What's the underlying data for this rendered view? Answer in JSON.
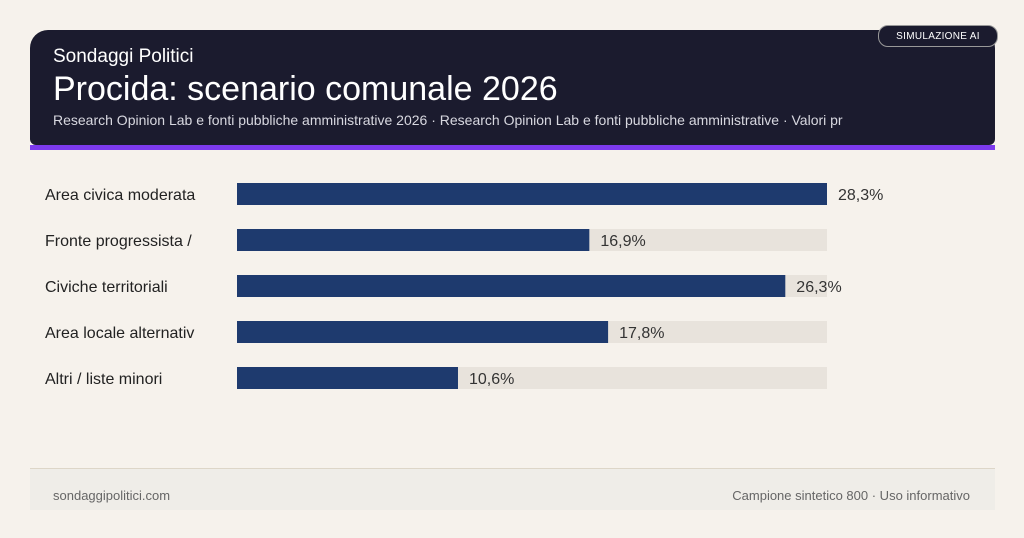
{
  "header": {
    "brand": "Sondaggi Politici",
    "title": "Procida: scenario comunale 2026",
    "subtitle": "Research Opinion Lab e fonti pubbliche amministrative 2026 · Research Opinion Lab e fonti pubbliche amministrative · Valori pr",
    "badge": "SIMULAZIONE AI"
  },
  "chart_data": {
    "type": "bar",
    "orientation": "horizontal",
    "categories": [
      "Area civica moderata",
      "Fronte progressista /",
      "Civiche territoriali",
      "Area locale alternativ",
      "Altri / liste minori"
    ],
    "values": [
      28.3,
      16.9,
      26.3,
      17.8,
      10.6
    ],
    "labels": [
      "28,3%",
      "16,9%",
      "26,3%",
      "17,8%",
      "10,6%"
    ],
    "xlim": [
      0,
      28.3
    ],
    "bar_color": "#1e3a6e",
    "track_color": "#e8e3dc"
  },
  "footer": {
    "left": "sondaggipolitici.com",
    "right": "Campione sintetico 800 · Uso informativo"
  }
}
